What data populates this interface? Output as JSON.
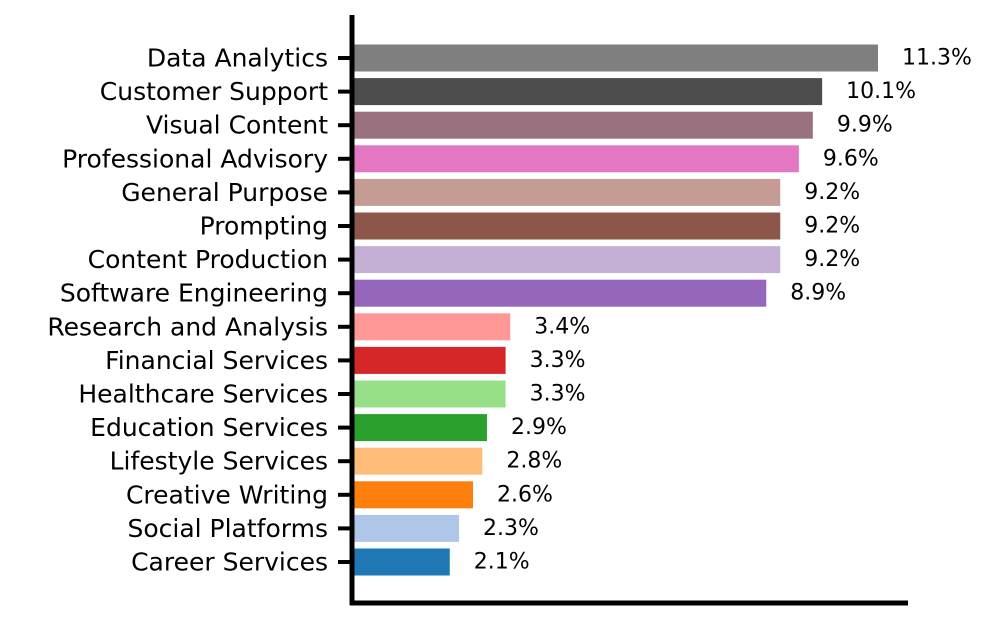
{
  "chart_data": {
    "type": "bar",
    "orientation": "horizontal",
    "categories": [
      "Data Analytics",
      "Customer Support",
      "Visual Content",
      "Professional Advisory",
      "General Purpose",
      "Prompting",
      "Content Production",
      "Software Engineering",
      "Research and Analysis",
      "Financial Services",
      "Healthcare Services",
      "Education Services",
      "Lifestyle Services",
      "Creative Writing",
      "Social Platforms",
      "Career Services"
    ],
    "values": [
      11.3,
      10.1,
      9.9,
      9.6,
      9.2,
      9.2,
      9.2,
      8.9,
      3.4,
      3.3,
      3.3,
      2.9,
      2.8,
      2.6,
      2.3,
      2.1
    ],
    "value_labels": [
      "11.3%",
      "10.1%",
      "9.9%",
      "9.6%",
      "9.2%",
      "9.2%",
      "9.2%",
      "8.9%",
      "3.4%",
      "3.3%",
      "3.3%",
      "2.9%",
      "2.8%",
      "2.6%",
      "2.3%",
      "2.1%"
    ],
    "colors": [
      "#7f7f7f",
      "#4d4d4d",
      "#9a717f",
      "#e377c2",
      "#c49c94",
      "#8c564b",
      "#c5b0d5",
      "#9467bd",
      "#ff9896",
      "#d62728",
      "#98df8a",
      "#2ca02c",
      "#ffbb78",
      "#ff7f0e",
      "#aec7e8",
      "#1f77b4"
    ],
    "xlim": [
      0,
      12
    ],
    "title": "",
    "xlabel": "",
    "ylabel": "",
    "grid": false,
    "legend": "none"
  }
}
